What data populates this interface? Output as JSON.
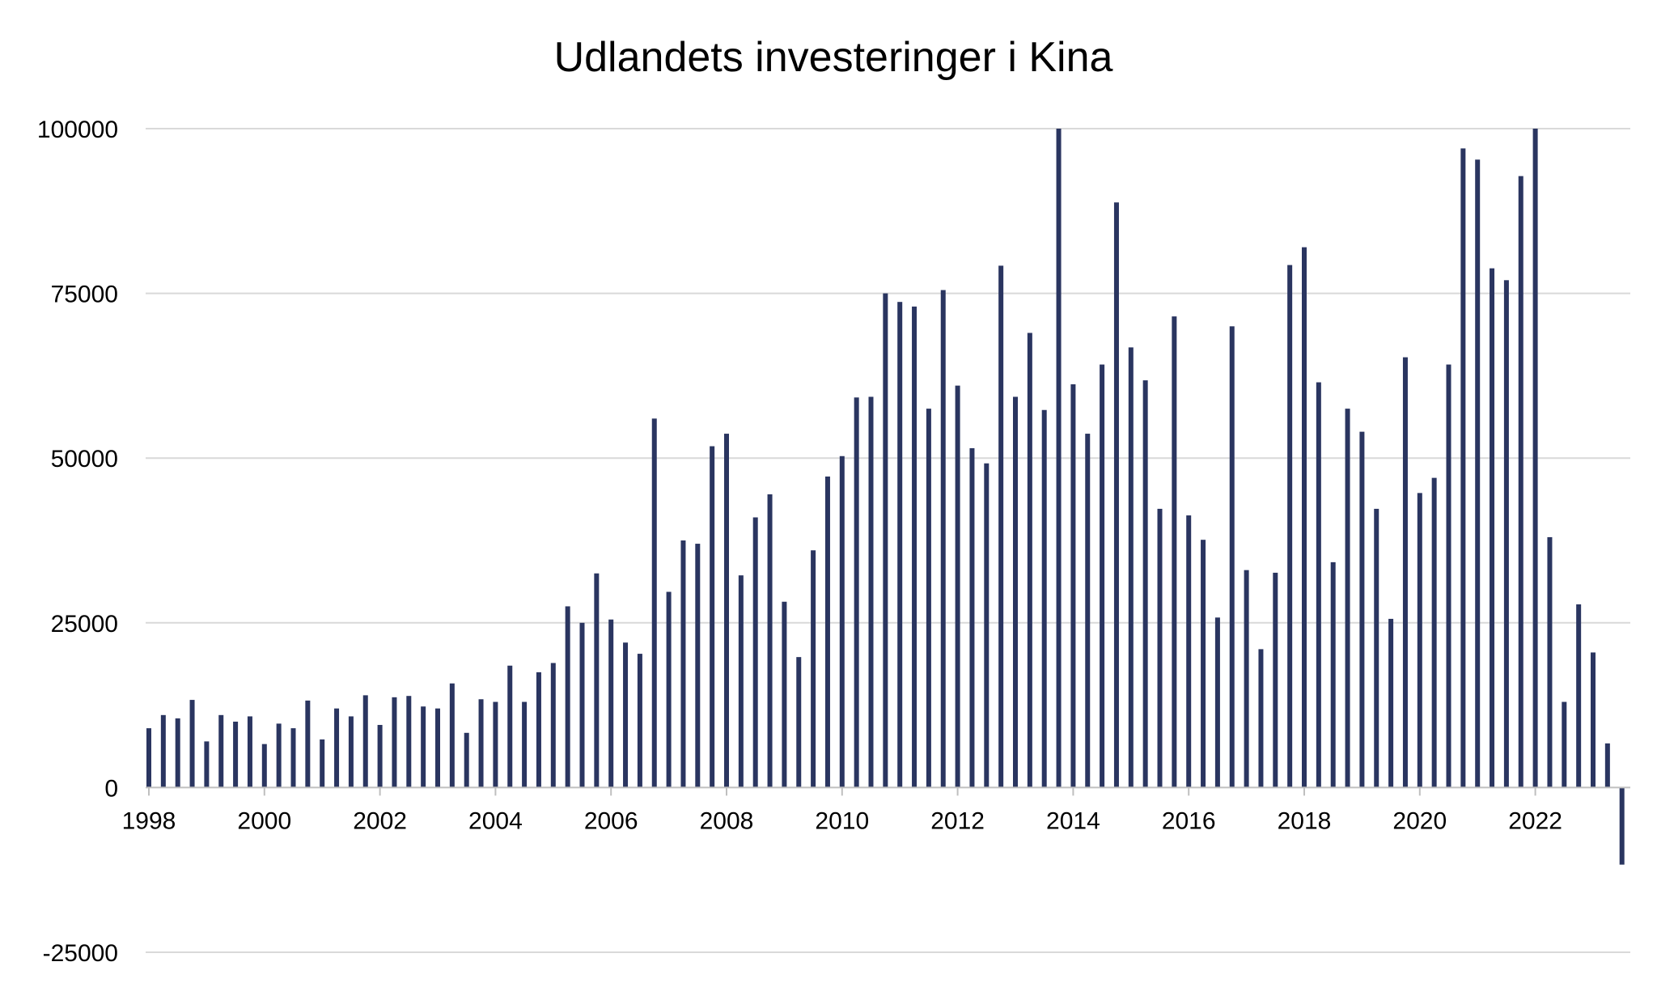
{
  "chart_data": {
    "type": "bar",
    "title": "Udlandets investeringer i Kina",
    "xlabel": "",
    "ylabel": "",
    "ylim": [
      -25000,
      100000
    ],
    "yticks": [
      -25000,
      0,
      25000,
      50000,
      75000,
      100000
    ],
    "x_tick_labels": [
      "1998",
      "2000",
      "2002",
      "2004",
      "2006",
      "2008",
      "2010",
      "2012",
      "2014",
      "2016",
      "2018",
      "2020",
      "2022"
    ],
    "bar_color": "#2a3560",
    "grid": true,
    "legend": "none",
    "values": [
      9000,
      11000,
      10500,
      13300,
      7000,
      11000,
      10000,
      10800,
      6600,
      9700,
      9000,
      13200,
      7300,
      12000,
      10800,
      14000,
      9500,
      13700,
      13900,
      12300,
      12000,
      15800,
      8300,
      13400,
      13000,
      18500,
      13000,
      17500,
      18900,
      27500,
      25000,
      32500,
      25500,
      22000,
      20300,
      56000,
      29700,
      37500,
      37000,
      51800,
      53700,
      32200,
      41000,
      44500,
      28200,
      19800,
      36000,
      47200,
      50300,
      59200,
      59300,
      75000,
      73700,
      73000,
      57500,
      75500,
      61000,
      51500,
      49200,
      79200,
      59300,
      69000,
      57300,
      100000,
      61200,
      53700,
      64200,
      88800,
      66800,
      61800,
      42300,
      71500,
      41300,
      37600,
      25800,
      70000,
      33000,
      21000,
      32600,
      79300,
      82000,
      61500,
      34200,
      57500,
      54000,
      42300,
      25600,
      65300,
      44700,
      47000,
      64200,
      97000,
      95300,
      78800,
      77000,
      92800,
      100000,
      38000,
      13000,
      27800,
      20500,
      6700,
      -11700
    ]
  }
}
